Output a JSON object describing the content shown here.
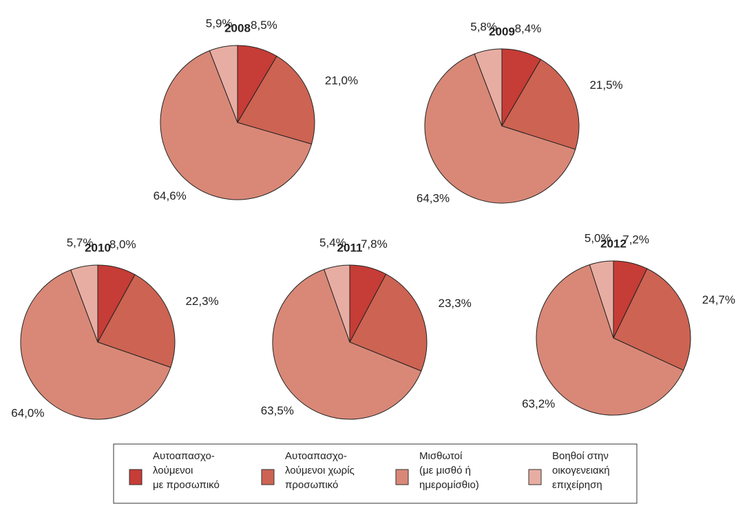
{
  "chart_data": [
    {
      "type": "pie",
      "title": "2008",
      "values": [
        8.5,
        21.0,
        64.6,
        5.9
      ],
      "value_labels": [
        "8,5%",
        "21,0%",
        "64,6%",
        "5,9%"
      ]
    },
    {
      "type": "pie",
      "title": "2009",
      "values": [
        8.4,
        21.5,
        64.3,
        5.8
      ],
      "value_labels": [
        "8,4%",
        "21,5%",
        "64,3%",
        "5,8%"
      ]
    },
    {
      "type": "pie",
      "title": "2010",
      "values": [
        8.0,
        22.3,
        64.0,
        5.7
      ],
      "value_labels": [
        "8,0%",
        "22,3%",
        "64,0%",
        "5,7%"
      ]
    },
    {
      "type": "pie",
      "title": "2011",
      "values": [
        7.8,
        23.3,
        63.5,
        5.4
      ],
      "value_labels": [
        "7,8%",
        "23,3%",
        "63,5%",
        "5,4%"
      ]
    },
    {
      "type": "pie",
      "title": "2012",
      "values": [
        7.2,
        24.7,
        63.2,
        5.0
      ],
      "value_labels": [
        "7,2%",
        "24,7%",
        "63,2%",
        "5,0%"
      ]
    }
  ],
  "legend": {
    "items": [
      {
        "lines": [
          "Αυτοαπασχο-",
          "λούμενοι",
          "με προσωπικό"
        ],
        "color": "#c63c36"
      },
      {
        "lines": [
          "Αυτοαπασχο-",
          "λούμενοι χωρίς",
          "προσωπικό"
        ],
        "color": "#cd6352"
      },
      {
        "lines": [
          "Μισθωτοί",
          "(με μισθό ή",
          "ημερομίσθιο)"
        ],
        "color": "#d98877"
      },
      {
        "lines": [
          "Βοηθοί στην",
          "οικογενειακή",
          "επιχείρηση"
        ],
        "color": "#e8ada2"
      }
    ]
  }
}
